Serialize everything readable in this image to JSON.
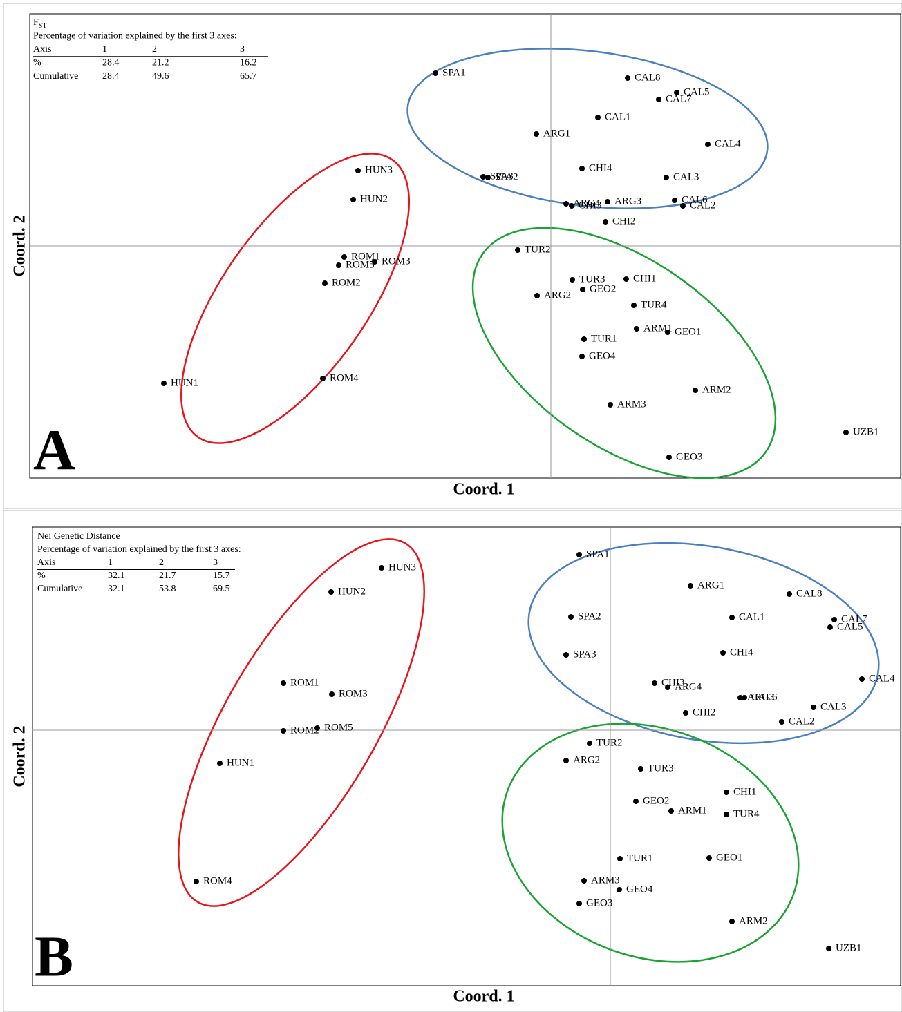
{
  "chart_data": [
    {
      "type": "scatter",
      "panel_label": "A",
      "title": {
        "text": "F",
        "subscript": "ST"
      },
      "subtitle": "Percentage of variation explained by the first 3 axes:",
      "table": {
        "header": [
          "Axis",
          "1",
          "2",
          "3"
        ],
        "rows": [
          [
            "%",
            28.4,
            21.2,
            16.2
          ],
          [
            "Cumulative",
            28.4,
            49.6,
            65.7
          ]
        ]
      },
      "x_label": "Coord. 1",
      "y_label": "Coord. 2",
      "xlim": [
        -7.54,
        5.06
      ],
      "ylim": [
        -3.36,
        3.36
      ],
      "color": "#000000",
      "point_labels": [
        "SPA1",
        "CAL8",
        "CAL5",
        "CAL7",
        "CAL1",
        "ARG1",
        "CAL4",
        "CHI4",
        "SPA3",
        "SPA2",
        "CAL3",
        "CAL6",
        "CAL2",
        "ARG3",
        "ARG4",
        "CHI3",
        "CHI2",
        "HUN3",
        "HUN2",
        "ROM1",
        "ROM3",
        "ROM5",
        "ROM2",
        "HUN1",
        "ROM4",
        "TUR2",
        "TUR3",
        "GEO2",
        "CHI1",
        "ARG2",
        "TUR4",
        "ARM1",
        "GEO1",
        "TUR1",
        "GEO4",
        "ARM2",
        "ARM3",
        "UZB1",
        "GEO3"
      ],
      "x": [
        -1.67,
        1.11,
        1.82,
        1.56,
        0.68,
        -0.21,
        2.27,
        0.45,
        -0.98,
        -0.91,
        1.67,
        1.79,
        1.91,
        0.82,
        0.22,
        0.3,
        0.79,
        -2.79,
        -2.86,
        -2.99,
        -2.55,
        -3.07,
        -3.27,
        -5.6,
        -3.3,
        -0.48,
        0.31,
        0.46,
        1.09,
        -0.2,
        1.2,
        1.24,
        1.69,
        0.48,
        0.45,
        2.09,
        0.86,
        4.27,
        1.71
      ],
      "values": [
        2.5,
        2.43,
        2.22,
        2.12,
        1.86,
        1.62,
        1.47,
        1.12,
        1.0,
        0.99,
        0.99,
        0.66,
        0.58,
        0.64,
        0.61,
        0.58,
        0.35,
        1.09,
        0.67,
        -0.16,
        -0.23,
        -0.28,
        -0.54,
        -1.99,
        -1.92,
        -0.06,
        -0.49,
        -0.63,
        -0.48,
        -0.72,
        -0.86,
        -1.2,
        -1.25,
        -1.35,
        -1.6,
        -2.09,
        -2.3,
        -2.7,
        -3.06
      ]
    },
    {
      "type": "scatter",
      "panel_label": "B",
      "title": {
        "text": "Nei Genetic Distance"
      },
      "subtitle": "Percentage of variation explained by the first 3 axes:",
      "table": {
        "header": [
          "Axis",
          "1",
          "2",
          "3"
        ],
        "rows": [
          [
            "%",
            32.1,
            21.7,
            15.7
          ],
          [
            "Cumulative",
            32.1,
            53.8,
            69.5
          ]
        ]
      },
      "x_label": "Coord. 1",
      "y_label": "Coord. 2",
      "xlim": [
        -8.36,
        4.2
      ],
      "ylim": [
        -3.7,
        2.94
      ],
      "color": "#000000",
      "point_labels": [
        "SPA1",
        "HUN3",
        "ARG1",
        "HUN2",
        "CAL8",
        "CAL1",
        "SPA2",
        "CAL7",
        "CAL5",
        "CHI4",
        "SPA3",
        "CAL4",
        "ROM1",
        "CHI3",
        "ARG4",
        "ROM3",
        "ARG3",
        "CAL6",
        "CAL3",
        "CHI2",
        "CAL2",
        "ROM5",
        "ROM2",
        "TUR2",
        "ARG2",
        "HUN1",
        "TUR3",
        "CHI1",
        "GEO2",
        "ARM1",
        "TUR4",
        "GEO1",
        "TUR1",
        "ARM3",
        "ROM4",
        "GEO4",
        "GEO3",
        "ARM2",
        "UZB1"
      ],
      "x": [
        -0.45,
        -3.31,
        1.16,
        -4.04,
        2.59,
        1.76,
        -0.57,
        3.24,
        3.18,
        1.63,
        -0.64,
        3.64,
        -4.73,
        0.64,
        0.83,
        -4.03,
        1.88,
        1.94,
        2.94,
        1.09,
        2.48,
        -4.24,
        -4.73,
        -0.3,
        -0.64,
        -5.65,
        0.44,
        1.68,
        0.37,
        0.88,
        1.68,
        1.43,
        0.14,
        -0.38,
        -5.99,
        0.13,
        -0.45,
        1.76,
        3.16
      ],
      "values": [
        2.54,
        2.35,
        2.09,
        2.0,
        1.97,
        1.63,
        1.64,
        1.6,
        1.49,
        1.12,
        1.09,
        0.74,
        0.68,
        0.68,
        0.62,
        0.52,
        0.47,
        0.47,
        0.33,
        0.25,
        0.12,
        0.03,
        -0.01,
        -0.19,
        -0.44,
        -0.48,
        -0.56,
        -0.9,
        -1.03,
        -1.17,
        -1.22,
        -1.85,
        -1.86,
        -2.18,
        -2.19,
        -2.31,
        -2.51,
        -2.77,
        -3.16
      ]
    }
  ]
}
